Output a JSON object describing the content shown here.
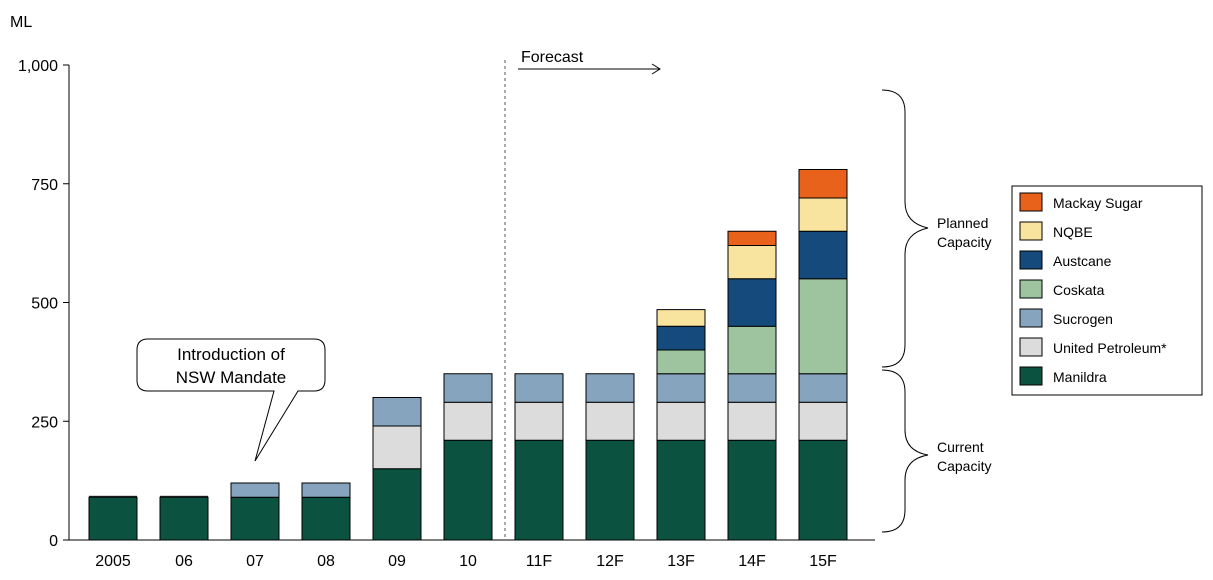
{
  "chart_data": {
    "type": "bar",
    "stacked": true,
    "unit_label": "ML",
    "ylim": [
      0,
      1000
    ],
    "yticks": [
      0,
      250,
      500,
      750,
      1000
    ],
    "ytick_labels": [
      "0",
      "250",
      "500",
      "750",
      "1,000"
    ],
    "categories": [
      "2005",
      "06",
      "07",
      "08",
      "09",
      "10",
      "11F",
      "12F",
      "13F",
      "14F",
      "15F"
    ],
    "series": [
      {
        "name": "Manildra",
        "color": "#0b5340",
        "values": [
          90,
          90,
          90,
          90,
          150,
          210,
          210,
          210,
          210,
          210,
          210
        ]
      },
      {
        "name": "United Petroleum*",
        "color": "#dcdcdc",
        "values": [
          0,
          0,
          0,
          0,
          90,
          80,
          80,
          80,
          80,
          80,
          80
        ]
      },
      {
        "name": "Sucrogen",
        "color": "#86a4be",
        "values": [
          0,
          0,
          30,
          30,
          60,
          60,
          60,
          60,
          60,
          60,
          60
        ]
      },
      {
        "name": "Coskata",
        "color": "#9dc39f",
        "values": [
          0,
          0,
          0,
          0,
          0,
          0,
          0,
          0,
          50,
          100,
          200
        ]
      },
      {
        "name": "Austcane",
        "color": "#154a7c",
        "values": [
          0,
          0,
          0,
          0,
          0,
          0,
          0,
          0,
          50,
          100,
          100
        ]
      },
      {
        "name": "NQBE",
        "color": "#f8e49e",
        "values": [
          0,
          0,
          0,
          0,
          0,
          0,
          0,
          0,
          35,
          70,
          70
        ]
      },
      {
        "name": "Mackay Sugar",
        "color": "#e8621c",
        "values": [
          0,
          0,
          0,
          0,
          0,
          0,
          0,
          0,
          0,
          30,
          60
        ]
      }
    ],
    "extra_segments": [
      {
        "category": "2005",
        "color": "#1a1a1a",
        "value": 3
      },
      {
        "category": "06",
        "color": "#1a1a1a",
        "value": 3
      }
    ],
    "annotations": {
      "forecast": "Forecast",
      "callout": [
        "Introduction of",
        "NSW Mandate"
      ],
      "planned": [
        "Planned",
        "Capacity"
      ],
      "current": [
        "Current",
        "Capacity"
      ]
    },
    "legend_position": "right"
  }
}
